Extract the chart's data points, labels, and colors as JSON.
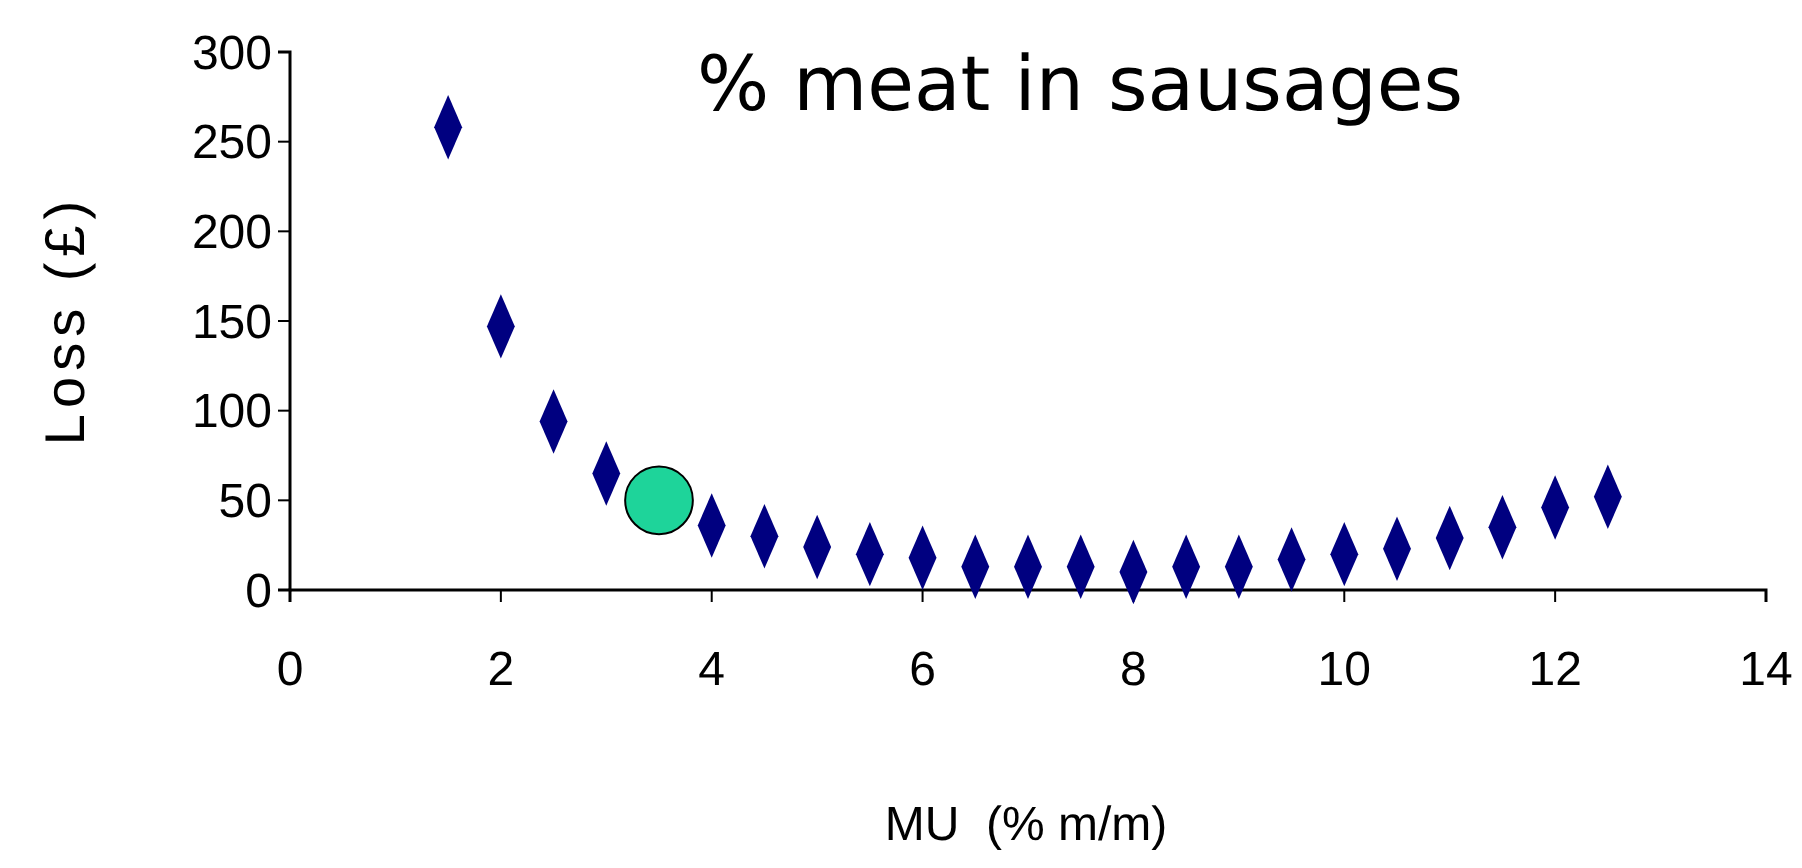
{
  "chart_data": {
    "type": "scatter",
    "title": "% meat in sausages",
    "xlabel": "MU  (% m/m)",
    "ylabel": "Loss (£)",
    "xlim": [
      0,
      14
    ],
    "xticks": [
      0,
      2,
      4,
      6,
      8,
      10,
      12,
      14
    ],
    "ylim": [
      0,
      300
    ],
    "yticks": [
      0,
      50,
      100,
      150,
      200,
      250,
      300
    ],
    "grid": false,
    "series": [
      {
        "color": "#000080",
        "marker": "diamond",
        "x": [
          1.5,
          2,
          2.5,
          3,
          4,
          4.5,
          5,
          5.5,
          6,
          6.5,
          7,
          7.5,
          8,
          8.5,
          9,
          9.5,
          10,
          10.5,
          11,
          11.5,
          12,
          12.5
        ],
        "values": [
          258,
          147,
          94,
          65,
          36,
          30,
          24,
          20,
          18,
          13,
          13,
          13,
          10,
          13,
          13,
          17,
          20,
          23,
          29,
          35,
          46,
          52
        ]
      },
      {
        "color": "#1ed49a",
        "marker": "circle",
        "x": [
          3.5
        ],
        "values": [
          50
        ]
      }
    ]
  }
}
